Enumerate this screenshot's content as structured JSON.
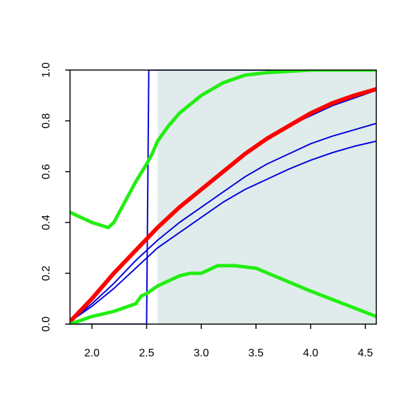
{
  "chart_data": {
    "type": "line",
    "title": "",
    "xlabel": "",
    "ylabel": "",
    "xlim": [
      1.8,
      4.6
    ],
    "ylim": [
      0.0,
      1.0
    ],
    "x_ticks": [
      2.0,
      2.5,
      3.0,
      3.5,
      4.0,
      4.5
    ],
    "x_tick_labels": [
      "2.0",
      "2.5",
      "3.0",
      "3.5",
      "4.0",
      "4.5"
    ],
    "y_ticks": [
      0.0,
      0.2,
      0.4,
      0.6,
      0.8,
      1.0
    ],
    "y_tick_labels": [
      "0.0",
      "0.2",
      "0.4",
      "0.6",
      "0.8",
      "1.0"
    ],
    "grid": false,
    "legend": "none",
    "shaded_region": {
      "x_from": 2.6,
      "x_to": 4.6,
      "color": "#dfeceb"
    },
    "series": [
      {
        "color": "#0000dd",
        "width": 2,
        "x": [
          1.8,
          2.5,
          2.51,
          2.52,
          2.55,
          2.6,
          3.0,
          3.5,
          4.0,
          4.6
        ],
        "values": [
          0.0,
          0.0,
          0.5,
          1.0,
          1.0,
          1.0,
          1.0,
          1.0,
          1.0,
          1.0
        ]
      },
      {
        "color": "#0000dd",
        "width": 2,
        "x": [
          1.8,
          2.0,
          2.2,
          2.4,
          2.6,
          2.8,
          3.0,
          3.2,
          3.4,
          3.6,
          3.8,
          4.0,
          4.2,
          4.4,
          4.6
        ],
        "values": [
          0.01,
          0.07,
          0.14,
          0.22,
          0.3,
          0.36,
          0.42,
          0.48,
          0.53,
          0.57,
          0.61,
          0.645,
          0.675,
          0.7,
          0.72
        ]
      },
      {
        "color": "#0000dd",
        "width": 2,
        "x": [
          1.8,
          2.0,
          2.2,
          2.4,
          2.6,
          2.8,
          3.0,
          3.2,
          3.4,
          3.6,
          3.8,
          4.0,
          4.2,
          4.4,
          4.6
        ],
        "values": [
          0.01,
          0.08,
          0.16,
          0.25,
          0.33,
          0.4,
          0.46,
          0.52,
          0.58,
          0.63,
          0.67,
          0.71,
          0.74,
          0.765,
          0.79
        ]
      },
      {
        "color": "#0000dd",
        "width": 2,
        "x": [
          1.8,
          2.0,
          2.2,
          2.4,
          2.6,
          2.8,
          3.0,
          3.2,
          3.4,
          3.6,
          3.8,
          4.0,
          4.2,
          4.4,
          4.6
        ],
        "values": [
          0.01,
          0.1,
          0.2,
          0.29,
          0.38,
          0.46,
          0.53,
          0.6,
          0.67,
          0.73,
          0.78,
          0.82,
          0.86,
          0.89,
          0.92
        ]
      },
      {
        "color": "#ff0000",
        "width": 6,
        "x": [
          1.8,
          2.0,
          2.2,
          2.4,
          2.6,
          2.8,
          3.0,
          3.2,
          3.4,
          3.6,
          3.8,
          4.0,
          4.2,
          4.4,
          4.6
        ],
        "values": [
          0.01,
          0.1,
          0.2,
          0.29,
          0.38,
          0.46,
          0.53,
          0.6,
          0.67,
          0.73,
          0.78,
          0.83,
          0.87,
          0.9,
          0.925
        ]
      },
      {
        "color": "#22ee11",
        "width": 5,
        "x": [
          1.8,
          2.0,
          2.15,
          2.2,
          2.3,
          2.4,
          2.5,
          2.55,
          2.6,
          2.7,
          2.8,
          3.0,
          3.2,
          3.4,
          3.6,
          3.8,
          4.0,
          4.3,
          4.6
        ],
        "values": [
          0.44,
          0.4,
          0.38,
          0.4,
          0.48,
          0.56,
          0.63,
          0.67,
          0.72,
          0.78,
          0.83,
          0.9,
          0.95,
          0.98,
          0.99,
          0.995,
          1.0,
          1.0,
          1.0
        ]
      },
      {
        "color": "#22ee11",
        "width": 5,
        "x": [
          1.8,
          2.0,
          2.2,
          2.4,
          2.45,
          2.5,
          2.6,
          2.8,
          2.9,
          3.0,
          3.15,
          3.3,
          3.5,
          4.0,
          4.6
        ],
        "values": [
          0.0,
          0.03,
          0.05,
          0.08,
          0.11,
          0.12,
          0.15,
          0.19,
          0.2,
          0.2,
          0.23,
          0.23,
          0.22,
          0.13,
          0.03
        ]
      }
    ]
  }
}
